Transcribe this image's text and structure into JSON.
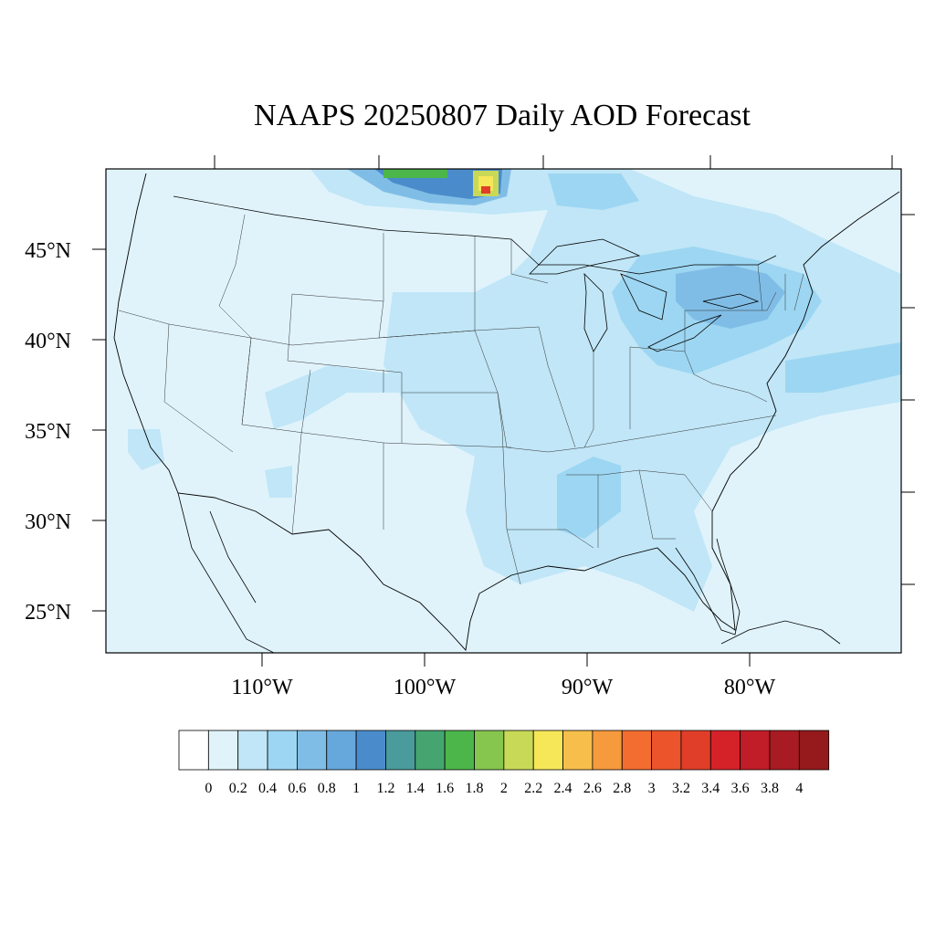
{
  "title": "NAAPS 20250807 Daily AOD Forecast",
  "map": {
    "lat_labels": [
      "45°N",
      "40°N",
      "35°N",
      "30°N",
      "25°N"
    ],
    "lon_labels": [
      "110°W",
      "100°W",
      "90°W",
      "80°W"
    ],
    "background_color": "#e0f3fb",
    "border_color": "#000000"
  },
  "colorbar": {
    "labels": [
      "0",
      "0.2",
      "0.4",
      "0.6",
      "0.8",
      "1",
      "1.2",
      "1.4",
      "1.6",
      "1.8",
      "2",
      "2.2",
      "2.4",
      "2.6",
      "2.8",
      "3",
      "3.2",
      "3.4",
      "3.6",
      "3.8",
      "4"
    ],
    "colors": [
      "#ffffff",
      "#e0f3fb",
      "#c0e6f7",
      "#9dd6f2",
      "#80bde6",
      "#66a8dc",
      "#4a8ccb",
      "#4a9b9c",
      "#45a571",
      "#4db64a",
      "#86c54e",
      "#c8d957",
      "#f6e758",
      "#f6bf4b",
      "#f69a3e",
      "#f36c30",
      "#ec542c",
      "#e03e29",
      "#d52229",
      "#c11d28",
      "#a91b22",
      "#941a1b"
    ]
  }
}
